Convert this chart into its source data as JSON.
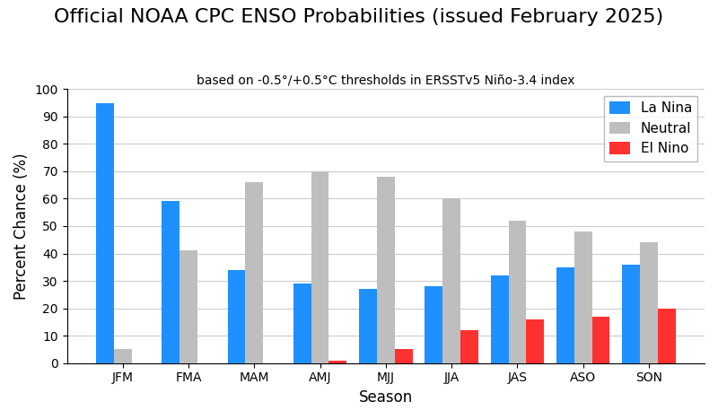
{
  "title": "Official NOAA CPC ENSO Probabilities (issued February 2025)",
  "subtitle": "based on -0.5°/+0.5°C thresholds in ERSSTv5 Niño-3.4 index",
  "xlabel": "Season",
  "ylabel": "Percent Chance (%)",
  "seasons": [
    "JFM",
    "FMA",
    "MAM",
    "AMJ",
    "MJJ",
    "JJA",
    "JAS",
    "ASO",
    "SON"
  ],
  "la_nina": [
    95,
    59,
    34,
    29,
    27,
    28,
    32,
    35,
    36
  ],
  "neutral": [
    5,
    41,
    66,
    70,
    68,
    60,
    52,
    48,
    44
  ],
  "el_nino": [
    0,
    0,
    0,
    1,
    5,
    12,
    16,
    17,
    20
  ],
  "la_nina_color": "#1E90FF",
  "neutral_color": "#BEBEBE",
  "el_nino_color": "#FF3030",
  "ylim": [
    0,
    100
  ],
  "yticks": [
    0,
    10,
    20,
    30,
    40,
    50,
    60,
    70,
    80,
    90,
    100
  ],
  "title_fontsize": 16,
  "subtitle_fontsize": 10,
  "axis_label_fontsize": 12,
  "tick_fontsize": 10,
  "legend_fontsize": 11,
  "bar_width": 0.27,
  "grid_color": "#cccccc",
  "background_color": "#ffffff",
  "legend_labels": [
    "La Nina",
    "Neutral",
    "El Nino"
  ]
}
